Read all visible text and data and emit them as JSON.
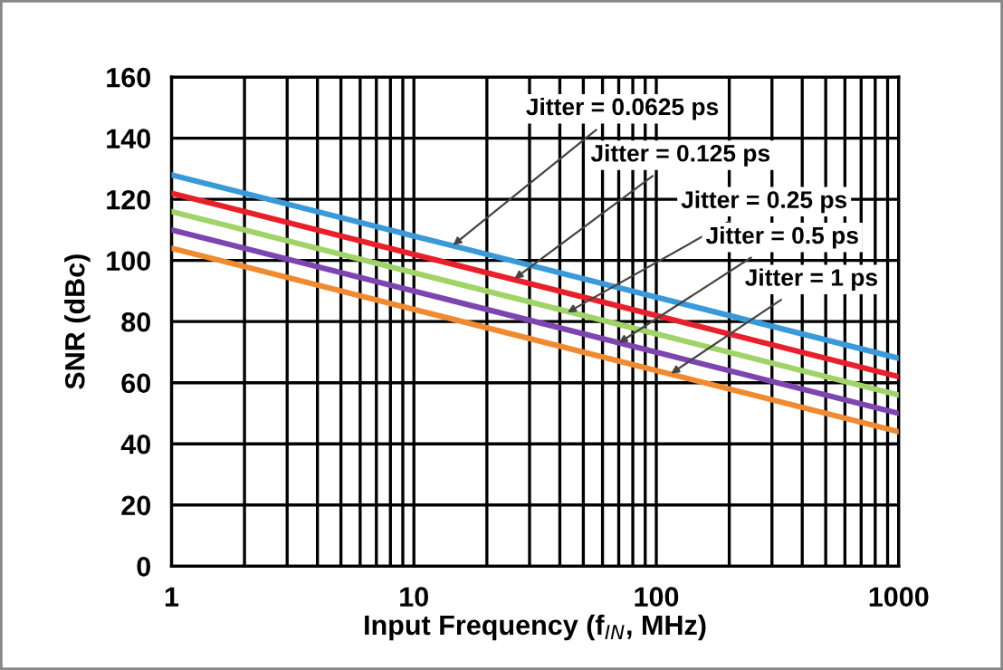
{
  "chart_data": {
    "type": "line",
    "xlabel": "Input Frequency (f$_{IN}$, MHz)",
    "ylabel": "SNR (dBc)",
    "log": "x",
    "xlim": [
      1,
      1000
    ],
    "ylim": [
      0,
      160
    ],
    "xticks": [
      1,
      10,
      100,
      1000
    ],
    "yticks": [
      0,
      20,
      40,
      60,
      80,
      100,
      120,
      140,
      160
    ],
    "grid": true,
    "marker": "none",
    "line_style": "solid",
    "x": [
      1,
      10,
      100,
      1000
    ],
    "series": [
      {
        "color": "#3a9ad9",
        "values": [
          128,
          108,
          88,
          68
        ]
      },
      {
        "color": "#e8202a",
        "values": [
          122,
          102,
          82,
          62
        ]
      },
      {
        "color": "#a0d468",
        "values": [
          116,
          96,
          76,
          56
        ]
      },
      {
        "color": "#7d45b0",
        "values": [
          110,
          90,
          70,
          50
        ]
      },
      {
        "color": "#f08a30",
        "values": [
          104,
          84,
          64,
          44
        ]
      }
    ],
    "annotations": [
      {
        "text": "Jitter = 0.0625 ps",
        "x": 14.5,
        "y": 105
      },
      {
        "text": "Jitter = 0.125 ps",
        "x": 26,
        "y": 94
      },
      {
        "text": "Jitter = 0.25 ps",
        "x": 43,
        "y": 83
      },
      {
        "text": "Jitter = 0.5 ps",
        "x": 70,
        "y": 73
      },
      {
        "text": "Jitter = 1 ps",
        "x": 115,
        "y": 63
      }
    ]
  }
}
